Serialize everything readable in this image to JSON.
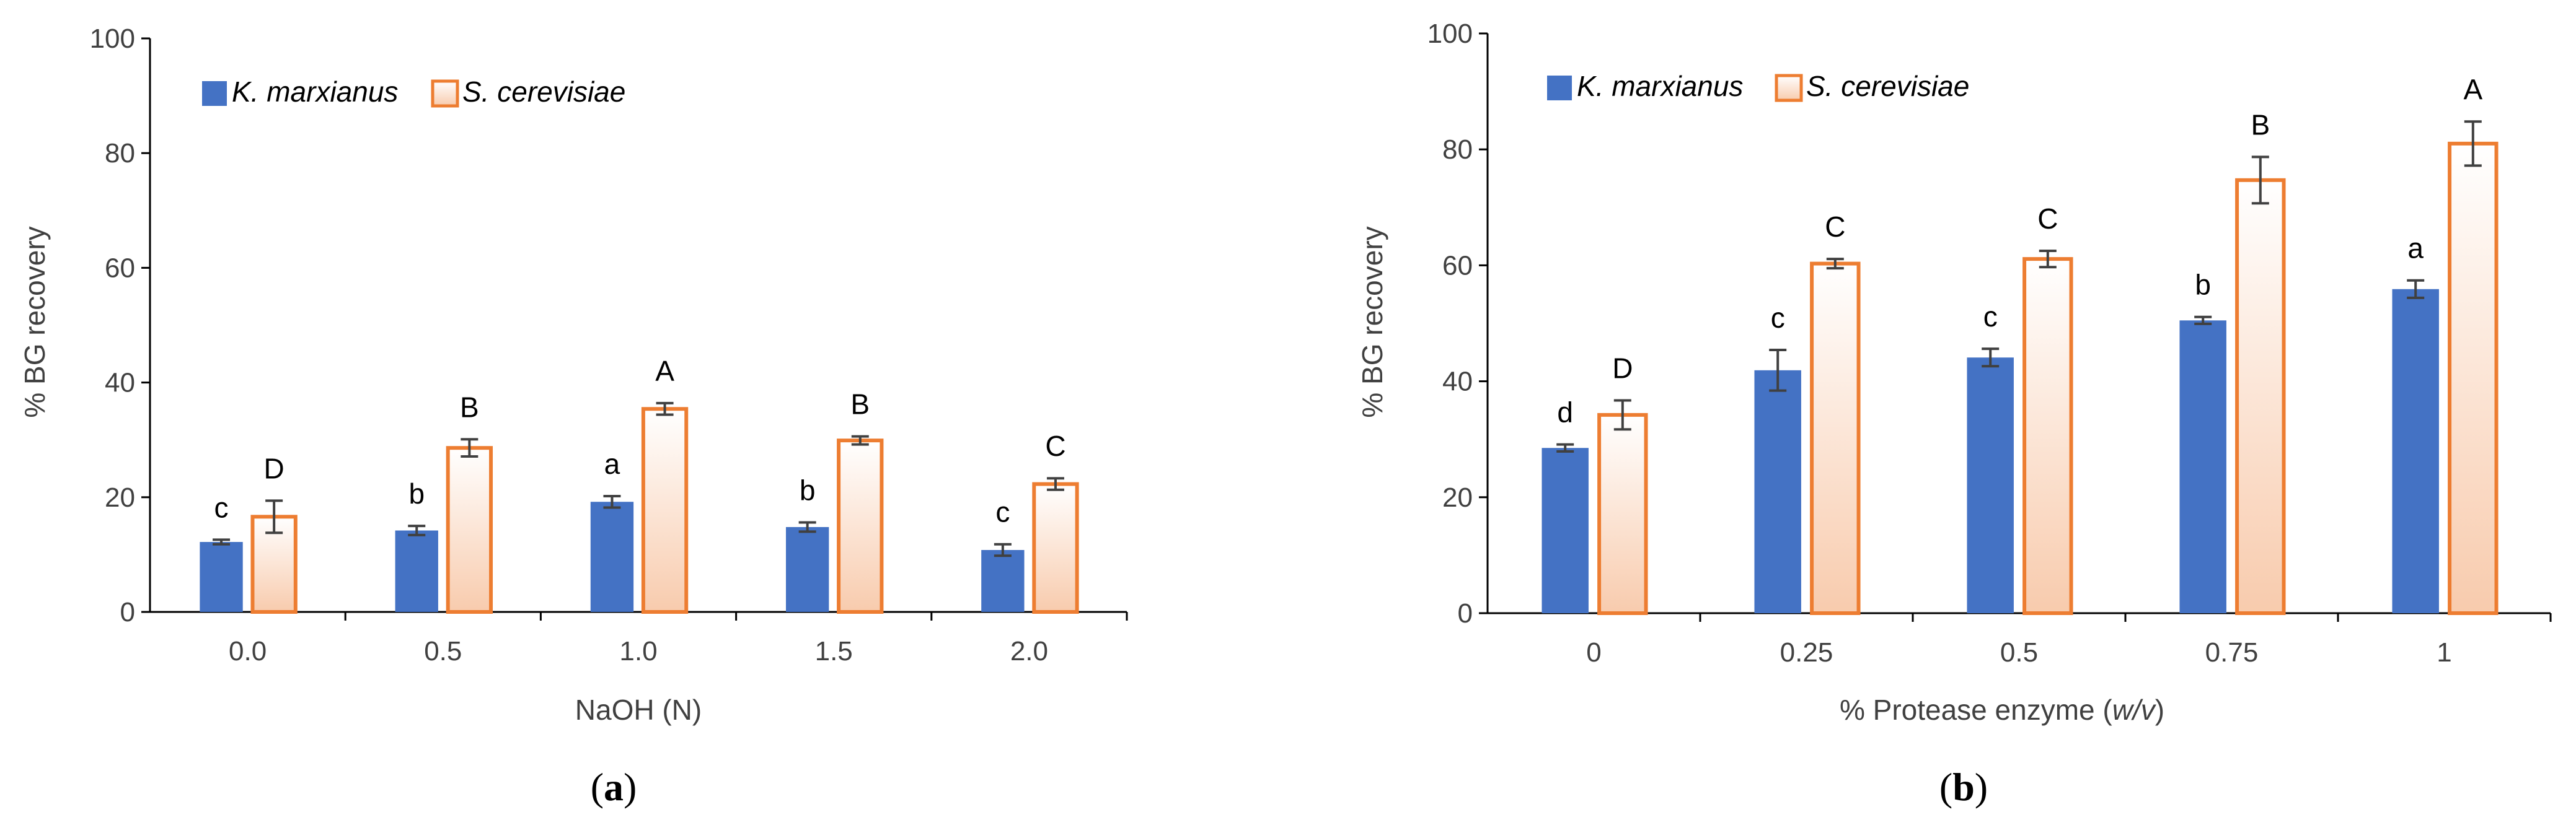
{
  "colors": {
    "k_marxianus_fill": "#4472C4",
    "s_cerevisiae_stroke": "#ED7D31",
    "s_cerevisiae_gradient_top": "#FFFFFF",
    "s_cerevisiae_gradient_bottom": "#F8CBAD",
    "axis": "#000000",
    "error_bar": "#404040"
  },
  "chart_data": [
    {
      "id": "a",
      "type": "bar",
      "panel_label": "a",
      "xlabel": "NaOH (N)",
      "xlabel_unit_italic": "",
      "ylabel": "% BG recovery",
      "ylim": [
        0,
        100
      ],
      "yticks": [
        "0",
        "20",
        "40",
        "60",
        "80",
        "100"
      ],
      "categories": [
        "0.0",
        "0.5",
        "1.0",
        "1.5",
        "2.0"
      ],
      "legend_position": "top-left",
      "series": [
        {
          "name": "K. marxianus",
          "values": [
            12.2,
            14.2,
            19.2,
            14.8,
            10.8
          ],
          "errors": [
            0.4,
            0.8,
            1.0,
            0.8,
            1.0
          ],
          "letters": [
            "c",
            "b",
            "a",
            "b",
            "c"
          ]
        },
        {
          "name": "S. cerevisiae",
          "values": [
            16.6,
            28.6,
            35.4,
            29.9,
            22.3
          ],
          "errors": [
            2.8,
            1.5,
            1.0,
            0.7,
            1.0
          ],
          "letters": [
            "D",
            "B",
            "A",
            "B",
            "C"
          ]
        }
      ]
    },
    {
      "id": "b",
      "type": "bar",
      "panel_label": "b",
      "xlabel": "% Protease enzyme (",
      "xlabel_unit_italic": "w/v",
      "xlabel_suffix": ")",
      "ylabel": "% BG recovery",
      "ylim": [
        0,
        100
      ],
      "yticks": [
        "0",
        "20",
        "40",
        "60",
        "80",
        "100"
      ],
      "categories": [
        "0",
        "0.25",
        "0.5",
        "0.75",
        "1"
      ],
      "legend_position": "top-left",
      "series": [
        {
          "name": "K. marxianus",
          "values": [
            28.5,
            41.9,
            44.1,
            50.5,
            55.9
          ],
          "errors": [
            0.6,
            3.5,
            1.5,
            0.6,
            1.5
          ],
          "letters": [
            "d",
            "c",
            "c",
            "b",
            "a"
          ]
        },
        {
          "name": "S. cerevisiae",
          "values": [
            34.2,
            60.3,
            61.1,
            74.7,
            81.0
          ],
          "errors": [
            2.5,
            0.8,
            1.4,
            4.0,
            3.8
          ],
          "letters": [
            "D",
            "C",
            "C",
            "B",
            "A"
          ]
        }
      ]
    }
  ]
}
